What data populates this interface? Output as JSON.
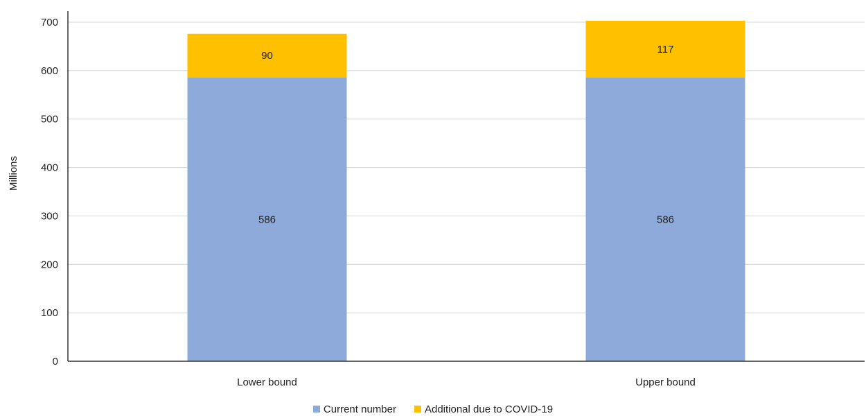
{
  "chart_data": {
    "type": "bar",
    "stacked": true,
    "categories": [
      "Lower bound",
      "Upper bound"
    ],
    "series": [
      {
        "name": "Current number",
        "values": [
          586,
          586
        ],
        "color": "#8eaadb"
      },
      {
        "name": "Additional due to COVID-19",
        "values": [
          90,
          117
        ],
        "color": "#ffc000"
      }
    ],
    "ylabel": "Millions",
    "ylim": [
      0,
      700
    ],
    "yticks": [
      0,
      100,
      200,
      300,
      400,
      500,
      600,
      700
    ],
    "grid": true,
    "legend_position": "bottom"
  }
}
